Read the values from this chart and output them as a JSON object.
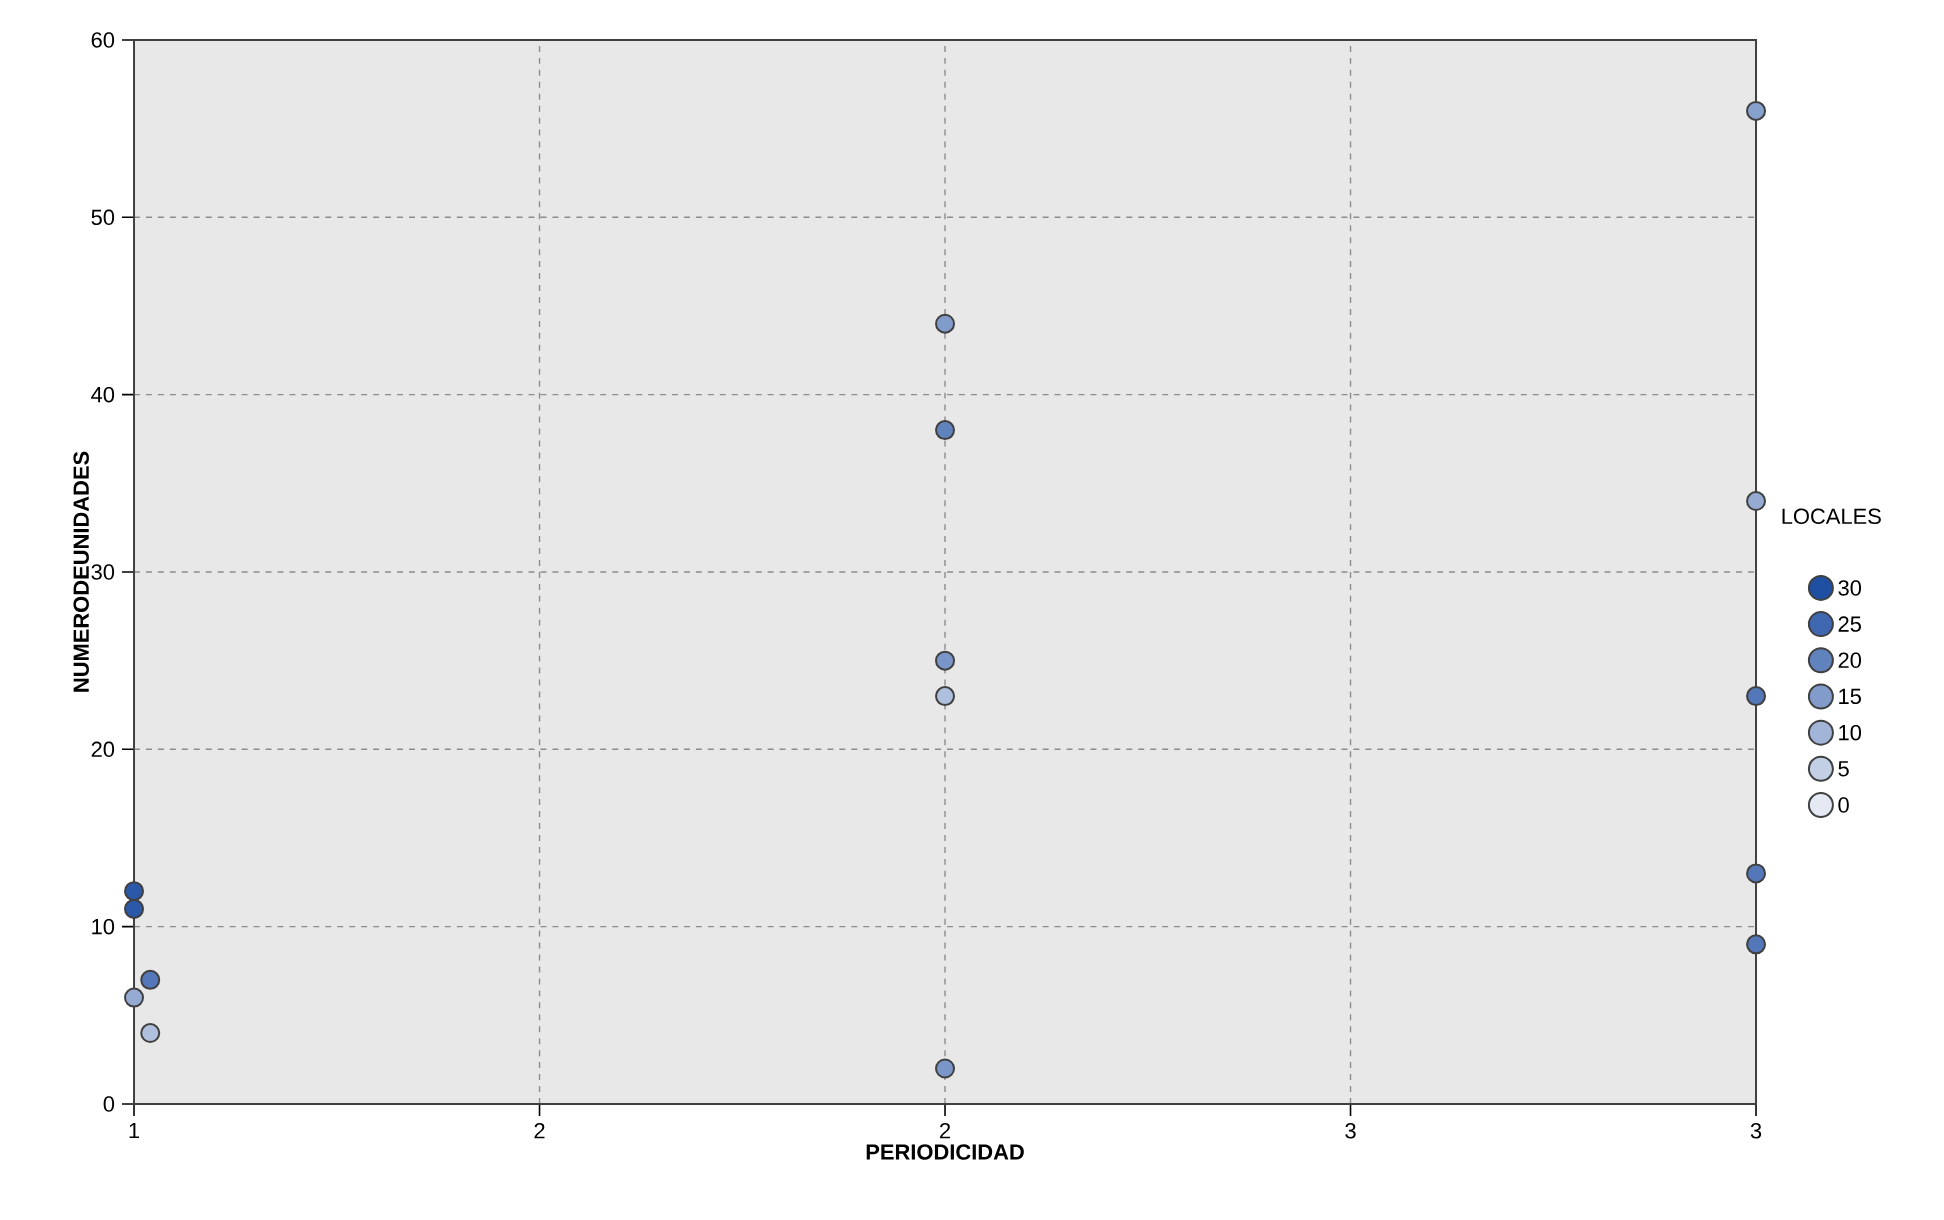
{
  "chart_data": {
    "type": "scatter",
    "xlabel": "PERIODICIDAD",
    "ylabel": "NUMERODEUNIDADES",
    "legend_title": "LOCALES",
    "x": [
      1,
      1,
      1.02,
      1,
      1.02,
      2,
      2,
      2,
      2,
      2,
      3,
      3,
      3,
      3,
      3
    ],
    "values": [
      12,
      11,
      7,
      6,
      4,
      44,
      38,
      25,
      23,
      2,
      56,
      34,
      23,
      13,
      9
    ],
    "cvalues": [
      28,
      28,
      22,
      12,
      8,
      15,
      20,
      16,
      8,
      16,
      14,
      12,
      22,
      22,
      22
    ],
    "cticks": [
      0,
      5,
      10,
      15,
      20,
      25,
      30
    ],
    "xlim": [
      1,
      3
    ],
    "ylim": [
      0,
      60
    ],
    "xticks": [
      {
        "value": 1,
        "label": "1"
      },
      {
        "value": 1.5,
        "label": "2"
      },
      {
        "value": 2,
        "label": "2"
      },
      {
        "value": 2.5,
        "label": "3"
      },
      {
        "value": 3,
        "label": "3"
      }
    ],
    "yticks": [
      0,
      10,
      20,
      30,
      40,
      50,
      60
    ],
    "grid": true,
    "marker": "circle"
  }
}
